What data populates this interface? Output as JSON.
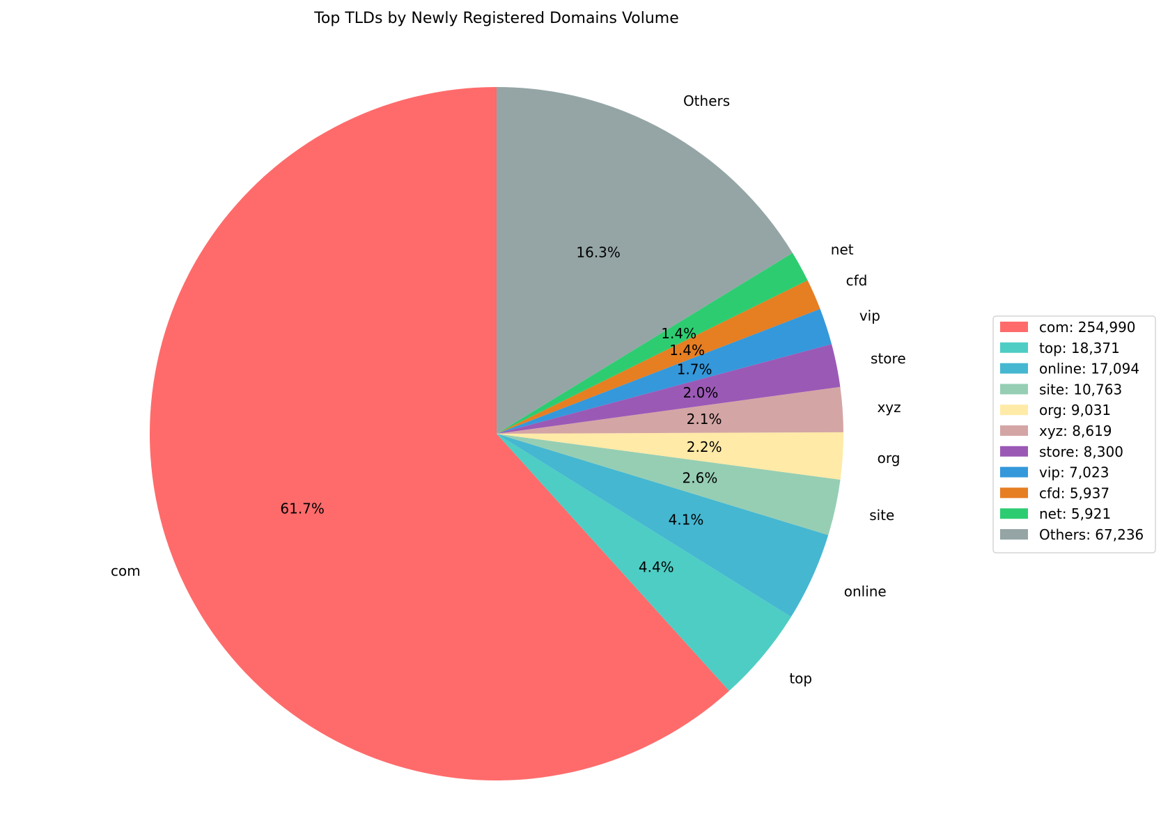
{
  "chart_data": {
    "type": "pie",
    "title": "Top TLDs by Newly Registered Domains Volume",
    "start_angle_deg": 90,
    "direction": "counterclockwise",
    "legend_position": "right",
    "slices": [
      {
        "label": "com",
        "value": 254990,
        "percent_label": "61.7%",
        "legend_label": "com: 254,990",
        "color": "#ff6b6b"
      },
      {
        "label": "top",
        "value": 18371,
        "percent_label": "4.4%",
        "legend_label": "top: 18,371",
        "color": "#4ecdc4"
      },
      {
        "label": "online",
        "value": 17094,
        "percent_label": "4.1%",
        "legend_label": "online: 17,094",
        "color": "#45b7d1"
      },
      {
        "label": "site",
        "value": 10763,
        "percent_label": "2.6%",
        "legend_label": "site: 10,763",
        "color": "#96ceb4"
      },
      {
        "label": "org",
        "value": 9031,
        "percent_label": "2.2%",
        "legend_label": "org: 9,031",
        "color": "#ffeaa7"
      },
      {
        "label": "xyz",
        "value": 8619,
        "percent_label": "2.1%",
        "legend_label": "xyz: 8,619",
        "color": "#d4a5a5"
      },
      {
        "label": "store",
        "value": 8300,
        "percent_label": "2.0%",
        "legend_label": "store: 8,300",
        "color": "#9b59b6"
      },
      {
        "label": "vip",
        "value": 7023,
        "percent_label": "1.7%",
        "legend_label": "vip: 7,023",
        "color": "#3498db"
      },
      {
        "label": "cfd",
        "value": 5937,
        "percent_label": "1.4%",
        "legend_label": "cfd: 5,937",
        "color": "#e67e22"
      },
      {
        "label": "net",
        "value": 5921,
        "percent_label": "1.4%",
        "legend_label": "net: 5,921",
        "color": "#2ecc71"
      },
      {
        "label": "Others",
        "value": 67236,
        "percent_label": "16.3%",
        "legend_label": "Others: 67,236",
        "color": "#95a5a6"
      }
    ]
  }
}
